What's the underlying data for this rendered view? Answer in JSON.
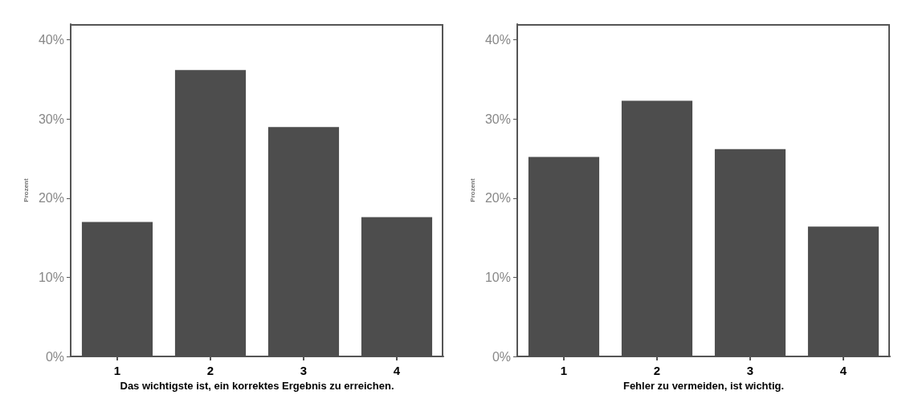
{
  "chart_data": [
    {
      "type": "bar",
      "xlabel": "Das wichtigste ist, ein korrektes Ergebnis zu erreichen.",
      "ylabel": "Prozent",
      "categories": [
        "1",
        "2",
        "3",
        "4"
      ],
      "values": [
        17.0,
        36.2,
        29.0,
        17.6
      ],
      "color": "#4d4d4d",
      "ylim": [
        0,
        42
      ],
      "yticks": [
        {
          "value": 0,
          "label": "0%"
        },
        {
          "value": 10,
          "label": "10%"
        },
        {
          "value": 20,
          "label": "20%"
        },
        {
          "value": 30,
          "label": "30%"
        },
        {
          "value": 40,
          "label": "40%"
        }
      ],
      "grid": false
    },
    {
      "type": "bar",
      "xlabel": "Fehler zu vermeiden, ist wichtig.",
      "ylabel": "Prozent",
      "categories": [
        "1",
        "2",
        "3",
        "4"
      ],
      "values": [
        25.2,
        32.3,
        26.2,
        16.4
      ],
      "color": "#4d4d4d",
      "ylim": [
        0,
        42
      ],
      "yticks": [
        {
          "value": 0,
          "label": "0%"
        },
        {
          "value": 10,
          "label": "10%"
        },
        {
          "value": 20,
          "label": "20%"
        },
        {
          "value": 30,
          "label": "30%"
        },
        {
          "value": 40,
          "label": "40%"
        }
      ],
      "grid": false
    }
  ]
}
